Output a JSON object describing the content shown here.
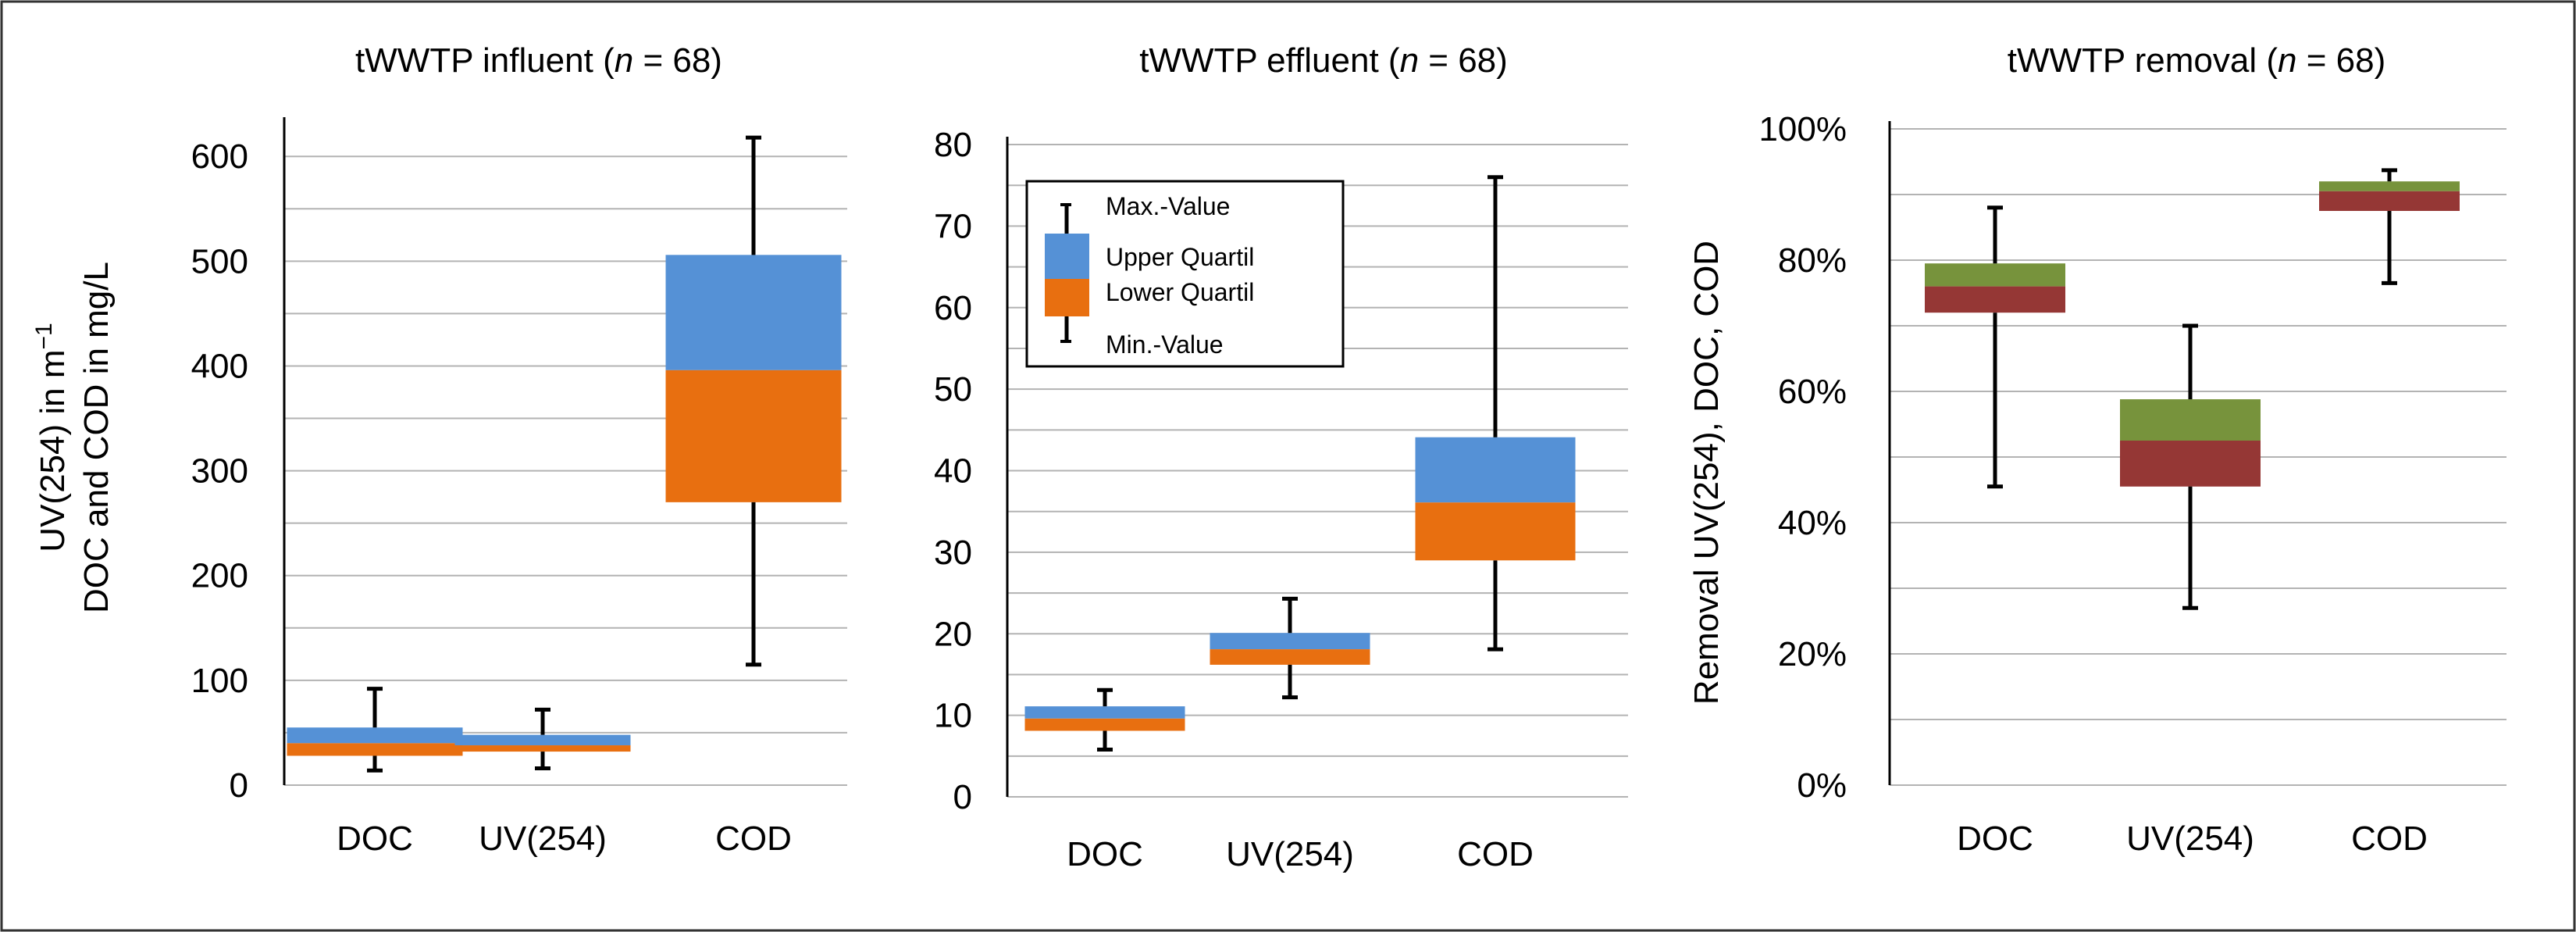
{
  "chart_data": [
    {
      "type": "box",
      "title": "tWWTP influent (",
      "title_italic": "n",
      "title_suffix": " = 68)",
      "ylabel_line1": "UV(254) in m",
      "ylabel_sup": "−1",
      "ylabel_line2": "DOC and COD in mg/L",
      "ylim": [
        0,
        630
      ],
      "ytick_values": [
        0,
        100,
        200,
        300,
        400,
        500,
        600
      ],
      "ytick_labels": [
        "0",
        "100",
        "200",
        "300",
        "400",
        "500",
        "600"
      ],
      "gridlines": [
        0,
        50,
        100,
        150,
        200,
        250,
        300,
        350,
        400,
        450,
        500,
        550,
        600
      ],
      "categories": [
        "DOC",
        "UV(254)",
        "COD"
      ],
      "min": [
        14,
        16,
        115
      ],
      "lower_quartile": [
        28,
        32,
        270
      ],
      "median": [
        40,
        38,
        396
      ],
      "upper_quartile": [
        55,
        48,
        506
      ],
      "max": [
        92,
        72,
        618
      ],
      "colors": {
        "upper": "#5591d6",
        "lower": "#e86f10"
      }
    },
    {
      "type": "box",
      "title": "tWWTP effluent (",
      "title_italic": "n",
      "title_suffix": " = 68)",
      "ylim": [
        0,
        80
      ],
      "ytick_values": [
        0,
        10,
        20,
        30,
        40,
        50,
        60,
        70,
        80
      ],
      "ytick_labels": [
        "0",
        "10",
        "20",
        "30",
        "40",
        "50",
        "60",
        "70",
        "80"
      ],
      "gridlines": [
        0,
        5,
        10,
        15,
        20,
        25,
        30,
        35,
        40,
        45,
        50,
        55,
        60,
        65,
        70,
        75,
        80
      ],
      "categories": [
        "DOC",
        "UV(254)",
        "COD"
      ],
      "min": [
        5.8,
        12.2,
        18.1
      ],
      "lower_quartile": [
        8.1,
        16.2,
        29.0
      ],
      "median": [
        9.6,
        18.1,
        36.1
      ],
      "upper_quartile": [
        11.1,
        20.1,
        44.1
      ],
      "max": [
        13.1,
        24.3,
        76.0
      ],
      "colors": {
        "upper": "#5591d6",
        "lower": "#e86f10"
      },
      "legend": {
        "entries": [
          "Max.-Value",
          "Upper Quartil",
          "Lower Quartil",
          "Min.-Value"
        ],
        "position": "top-left"
      }
    },
    {
      "type": "box",
      "title": "tWWTP removal (",
      "title_italic": "n",
      "title_suffix": " = 68)",
      "ylabel": "Removal UV(254), DOC, COD",
      "ylim": [
        0,
        100
      ],
      "ytick_values": [
        0,
        20,
        40,
        60,
        80,
        100
      ],
      "ytick_labels": [
        "0%",
        "20%",
        "40%",
        "60%",
        "80%",
        "100%"
      ],
      "gridlines": [
        0,
        10,
        20,
        30,
        40,
        50,
        60,
        70,
        80,
        90,
        100
      ],
      "categories": [
        "DOC",
        "UV(254)",
        "COD"
      ],
      "min": [
        45.5,
        27.0,
        76.5
      ],
      "lower_quartile": [
        72.0,
        45.5,
        87.5
      ],
      "median": [
        76.0,
        52.5,
        90.5
      ],
      "upper_quartile": [
        79.5,
        58.8,
        92.0
      ],
      "max": [
        88.0,
        70.0,
        93.7
      ],
      "colors": {
        "upper": "#77933c",
        "lower": "#953735"
      }
    }
  ]
}
